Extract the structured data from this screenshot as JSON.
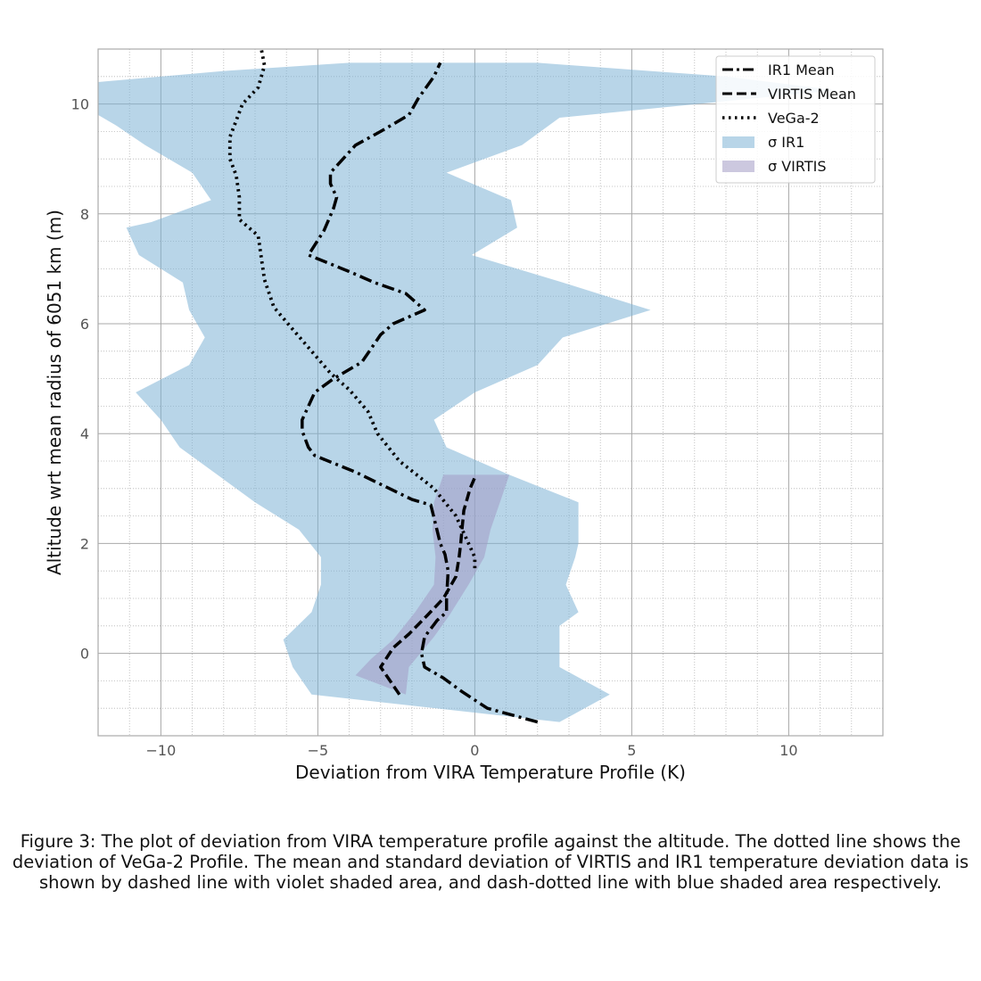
{
  "chart_data": {
    "type": "line",
    "xlabel": "Deviation from VIRA Temperature Profile (K)",
    "ylabel": "Altitude wrt mean radius of 6051 km (m)",
    "xlim": [
      -12,
      13
    ],
    "ylim": [
      -1.5,
      11
    ],
    "xticks": [
      -10,
      -5,
      0,
      5,
      10
    ],
    "xtick_labels": [
      "−10",
      "−5",
      "0",
      "5",
      "10"
    ],
    "yticks": [
      0,
      2,
      4,
      6,
      8,
      10
    ],
    "ytick_labels": [
      "0",
      "2",
      "4",
      "6",
      "8",
      "10"
    ],
    "minor_grid": true,
    "grid": true,
    "legend_position": "top-right",
    "colors": {
      "sigma_ir1": "#7eb3d5",
      "sigma_virtis": "#a29bc4",
      "lines": "#000000"
    },
    "series": [
      {
        "name": "IR1 Mean",
        "style": "dash-dot",
        "points": [
          [
            2.0,
            -1.25
          ],
          [
            0.4,
            -1.0
          ],
          [
            -0.4,
            -0.7
          ],
          [
            -1.0,
            -0.45
          ],
          [
            -1.6,
            -0.25
          ],
          [
            -1.7,
            0.0
          ],
          [
            -1.6,
            0.3
          ],
          [
            -1.2,
            0.6
          ],
          [
            -0.9,
            0.75
          ],
          [
            -0.9,
            1.0
          ],
          [
            -0.85,
            1.5
          ],
          [
            -0.95,
            1.8
          ],
          [
            -1.1,
            2.0
          ],
          [
            -1.25,
            2.35
          ],
          [
            -1.4,
            2.7
          ],
          [
            -2.0,
            2.8
          ],
          [
            -3.8,
            3.3
          ],
          [
            -5.1,
            3.6
          ],
          [
            -5.3,
            3.75
          ],
          [
            -5.5,
            4.05
          ],
          [
            -5.5,
            4.25
          ],
          [
            -5.1,
            4.75
          ],
          [
            -4.5,
            5.0
          ],
          [
            -3.6,
            5.3
          ],
          [
            -3.0,
            5.8
          ],
          [
            -2.6,
            6.0
          ],
          [
            -1.6,
            6.25
          ],
          [
            -2.2,
            6.55
          ],
          [
            -3.2,
            6.75
          ],
          [
            -4.0,
            6.95
          ],
          [
            -5.3,
            7.25
          ],
          [
            -4.8,
            7.7
          ],
          [
            -4.5,
            8.1
          ],
          [
            -4.4,
            8.3
          ],
          [
            -4.6,
            8.55
          ],
          [
            -4.6,
            8.75
          ],
          [
            -4.2,
            9.0
          ],
          [
            -3.8,
            9.25
          ],
          [
            -3.0,
            9.5
          ],
          [
            -2.1,
            9.8
          ],
          [
            -1.8,
            10.1
          ],
          [
            -1.3,
            10.5
          ],
          [
            -1.1,
            10.75
          ]
        ]
      },
      {
        "name": "VIRTIS Mean",
        "style": "dashed",
        "points": [
          [
            -2.4,
            -0.75
          ],
          [
            -2.7,
            -0.5
          ],
          [
            -3.0,
            -0.25
          ],
          [
            -2.6,
            0.1
          ],
          [
            -2.1,
            0.35
          ],
          [
            -1.5,
            0.7
          ],
          [
            -1.0,
            1.0
          ],
          [
            -0.6,
            1.4
          ],
          [
            -0.5,
            1.75
          ],
          [
            -0.45,
            2.0
          ],
          [
            -0.4,
            2.3
          ],
          [
            -0.35,
            2.6
          ],
          [
            -0.25,
            2.8
          ],
          [
            -0.15,
            3.0
          ],
          [
            0.0,
            3.2
          ]
        ]
      },
      {
        "name": "VeGa-2",
        "style": "dotted",
        "points": [
          [
            0.0,
            1.55
          ],
          [
            0.0,
            1.75
          ],
          [
            -0.2,
            2.0
          ],
          [
            -0.6,
            2.5
          ],
          [
            -1.3,
            3.0
          ],
          [
            -2.4,
            3.5
          ],
          [
            -3.1,
            4.0
          ],
          [
            -3.4,
            4.4
          ],
          [
            -4.0,
            4.8
          ],
          [
            -4.6,
            5.1
          ],
          [
            -5.2,
            5.5
          ],
          [
            -5.8,
            5.9
          ],
          [
            -6.4,
            6.3
          ],
          [
            -6.7,
            6.8
          ],
          [
            -6.8,
            7.2
          ],
          [
            -6.9,
            7.6
          ],
          [
            -7.5,
            7.9
          ],
          [
            -7.5,
            8.3
          ],
          [
            -7.6,
            8.7
          ],
          [
            -7.8,
            9.0
          ],
          [
            -7.8,
            9.4
          ],
          [
            -7.6,
            9.7
          ],
          [
            -7.4,
            10.0
          ],
          [
            -6.9,
            10.3
          ],
          [
            -6.7,
            10.7
          ],
          [
            -6.8,
            11.0
          ]
        ]
      }
    ],
    "bands": [
      {
        "name": "σ IR1",
        "color": "#7eb3d5",
        "opacity": 0.55,
        "polygon": [
          [
            2.7,
            -1.25
          ],
          [
            4.3,
            -0.75
          ],
          [
            2.7,
            -0.25
          ],
          [
            2.7,
            0.5
          ],
          [
            3.3,
            0.75
          ],
          [
            2.9,
            1.25
          ],
          [
            3.2,
            1.75
          ],
          [
            3.3,
            2.0
          ],
          [
            3.3,
            2.75
          ],
          [
            1.1,
            3.25
          ],
          [
            -0.9,
            3.75
          ],
          [
            -1.3,
            4.25
          ],
          [
            0.0,
            4.75
          ],
          [
            2.0,
            5.25
          ],
          [
            2.8,
            5.75
          ],
          [
            5.6,
            6.25
          ],
          [
            2.8,
            6.75
          ],
          [
            -0.1,
            7.25
          ],
          [
            1.35,
            7.75
          ],
          [
            1.15,
            8.25
          ],
          [
            -0.9,
            8.75
          ],
          [
            1.5,
            9.25
          ],
          [
            2.7,
            9.75
          ],
          [
            11.5,
            10.25
          ],
          [
            8.0,
            10.5
          ],
          [
            2.0,
            10.75
          ],
          [
            -4.0,
            10.75
          ],
          [
            -8.0,
            10.6
          ],
          [
            -12.0,
            10.4
          ],
          [
            -12.0,
            9.8
          ],
          [
            -11.4,
            9.6
          ],
          [
            -10.5,
            9.25
          ],
          [
            -9.0,
            8.75
          ],
          [
            -8.4,
            8.25
          ],
          [
            -10.3,
            7.85
          ],
          [
            -11.1,
            7.75
          ],
          [
            -10.7,
            7.25
          ],
          [
            -9.3,
            6.75
          ],
          [
            -9.1,
            6.25
          ],
          [
            -8.6,
            5.75
          ],
          [
            -9.1,
            5.25
          ],
          [
            -10.8,
            4.75
          ],
          [
            -10.0,
            4.25
          ],
          [
            -9.4,
            3.75
          ],
          [
            -8.2,
            3.25
          ],
          [
            -7.0,
            2.75
          ],
          [
            -5.6,
            2.25
          ],
          [
            -4.9,
            1.75
          ],
          [
            -4.9,
            1.25
          ],
          [
            -5.2,
            0.75
          ],
          [
            -6.1,
            0.25
          ],
          [
            -5.8,
            -0.25
          ],
          [
            -5.2,
            -0.75
          ],
          [
            2.7,
            -1.25
          ]
        ]
      },
      {
        "name": "σ VIRTIS",
        "color": "#a29bc4",
        "opacity": 0.55,
        "polygon": [
          [
            -2.2,
            -0.75
          ],
          [
            -2.1,
            -0.25
          ],
          [
            -1.3,
            0.3
          ],
          [
            -0.8,
            0.7
          ],
          [
            -0.2,
            1.25
          ],
          [
            0.3,
            1.75
          ],
          [
            0.5,
            2.25
          ],
          [
            0.8,
            2.75
          ],
          [
            1.1,
            3.25
          ],
          [
            -1.0,
            3.25
          ],
          [
            -1.3,
            2.75
          ],
          [
            -1.35,
            2.25
          ],
          [
            -1.25,
            1.75
          ],
          [
            -1.3,
            1.25
          ],
          [
            -1.9,
            0.75
          ],
          [
            -2.6,
            0.25
          ],
          [
            -3.3,
            -0.1
          ],
          [
            -3.8,
            -0.4
          ],
          [
            -2.2,
            -0.75
          ]
        ]
      }
    ]
  },
  "legend": {
    "ir1_mean": "IR1 Mean",
    "virtis_mean": "VIRTIS Mean",
    "vega2": "VeGa-2",
    "sigma_ir1": "σ IR1",
    "sigma_virtis": "σ VIRTIS"
  },
  "caption": "Figure 3: The plot of deviation from VIRA temperature profile against the altitude. The dotted line shows the deviation of VeGa-2 Profile. The mean and standard deviation of VIRTIS and IR1 temperature deviation data is shown by dashed line with violet shaded area, and dash-dotted line with blue shaded area respectively."
}
